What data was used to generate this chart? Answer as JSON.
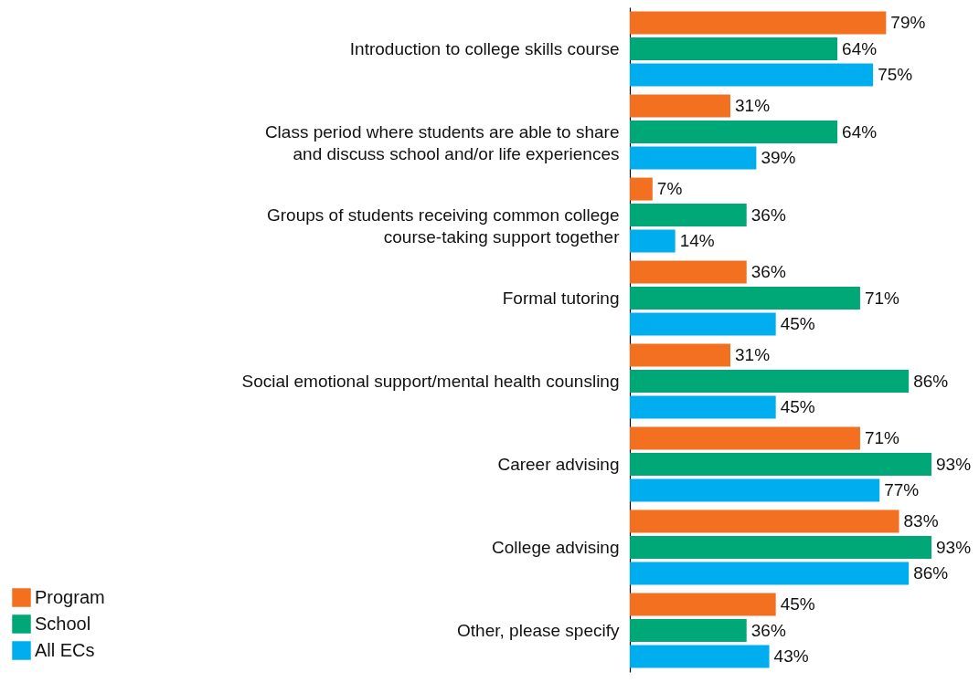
{
  "chart_data": {
    "type": "bar",
    "orientation": "horizontal",
    "categories": [
      "Introduction to college skills course",
      "Class period where students are able to share and discuss school and/or life experiences",
      "Groups of students receiving common college course-taking support together",
      "Formal tutoring",
      "Social emotional support/mental health counsling",
      "Career advising",
      "College advising",
      "Other, please specify"
    ],
    "series": [
      {
        "name": "Program",
        "color": "#f37021",
        "values": [
          79,
          31,
          7,
          36,
          31,
          71,
          83,
          45
        ],
        "value_labels": [
          "79%",
          "31%",
          "7%",
          "36%",
          "31%",
          "71%",
          "83%",
          "45%"
        ]
      },
      {
        "name": "School",
        "color": "#00a878",
        "values": [
          64,
          64,
          36,
          71,
          86,
          93,
          93,
          36
        ],
        "value_labels": [
          "64%",
          "64%",
          "36%",
          "71%",
          "86%",
          "93%",
          "93%",
          "36%"
        ]
      },
      {
        "name": "All ECs",
        "color": "#00aeef",
        "values": [
          75,
          39,
          14,
          45,
          45,
          77,
          86,
          43
        ],
        "value_labels": [
          "75%",
          "39%",
          "14%",
          "45%",
          "45%",
          "77%",
          "86%",
          "43%"
        ]
      }
    ],
    "legend": "bottom left"
  }
}
